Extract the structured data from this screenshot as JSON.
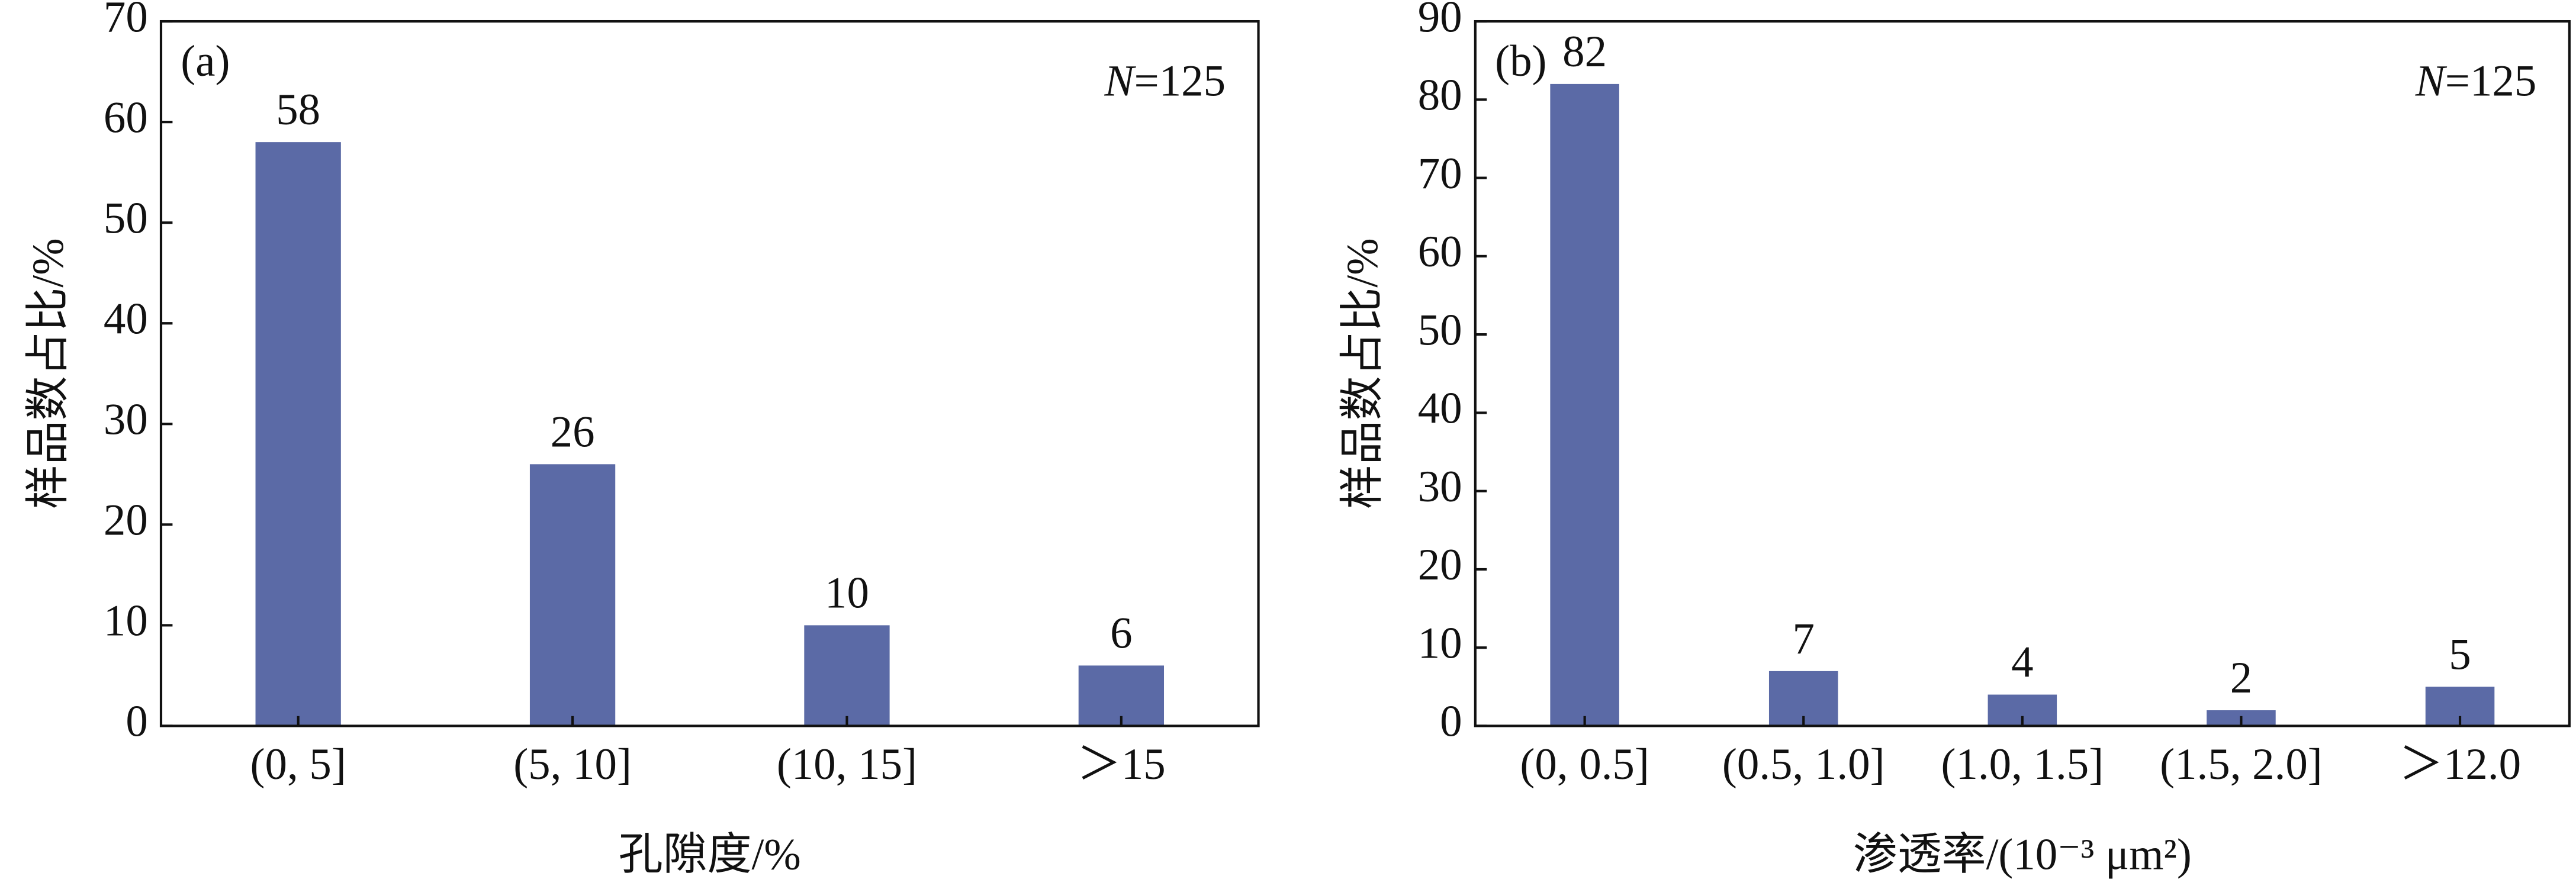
{
  "chart_data": [
    {
      "type": "bar",
      "panel": "(a)",
      "annotation": [
        "N",
        "=125"
      ],
      "xlabel": "孔隙度/%",
      "ylabel": "样品数占比/%",
      "categories": [
        "(0, 5]",
        "(5, 10]",
        "(10, 15]",
        "＞15"
      ],
      "values": [
        58,
        26,
        10,
        6
      ],
      "color": "#5b6aa6",
      "ylim": [
        0,
        70
      ],
      "yticks": [
        0,
        10,
        20,
        30,
        40,
        50,
        60,
        70
      ]
    },
    {
      "type": "bar",
      "panel": "(b)",
      "annotation": [
        "N",
        "=125"
      ],
      "xlabel": "渗透率/(10⁻³ μm²)",
      "ylabel": "样品数占比/%",
      "categories": [
        "(0, 0.5]",
        "(0.5, 1.0]",
        "(1.0, 1.5]",
        "(1.5, 2.0]",
        "＞12.0"
      ],
      "values": [
        82,
        7,
        4,
        2,
        5
      ],
      "color": "#5b6aa6",
      "ylim": [
        0,
        90
      ],
      "yticks": [
        0,
        10,
        20,
        30,
        40,
        50,
        60,
        70,
        80,
        90
      ]
    }
  ]
}
